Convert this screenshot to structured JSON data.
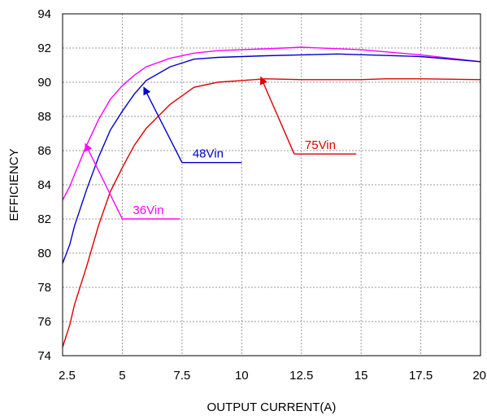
{
  "chart_data": {
    "type": "line",
    "xlabel": "OUTPUT CURRENT(A)",
    "ylabel": "EFFICIENCY",
    "xlim": [
      2.5,
      20
    ],
    "ylim": [
      74,
      94
    ],
    "x_ticks": [
      "2.5",
      "5",
      "7.5",
      "10",
      "12.5",
      "15",
      "17.5",
      "20"
    ],
    "y_ticks": [
      "74",
      "76",
      "78",
      "80",
      "82",
      "84",
      "86",
      "88",
      "90",
      "92",
      "94"
    ],
    "grid": true,
    "series": [
      {
        "name": "36Vin",
        "color": "#ff00ff",
        "x": [
          2.5,
          2.8,
          3.0,
          3.5,
          4.0,
          4.5,
          5.0,
          5.5,
          6.0,
          7.0,
          8.0,
          9.0,
          10.0,
          11.0,
          12.5,
          15.0,
          17.5,
          20.0
        ],
        "y": [
          83.1,
          83.9,
          84.6,
          86.3,
          87.8,
          89.0,
          89.8,
          90.4,
          90.9,
          91.4,
          91.7,
          91.85,
          91.9,
          91.95,
          92.05,
          91.9,
          91.6,
          91.2
        ]
      },
      {
        "name": "48Vin",
        "color": "#0000cc",
        "x": [
          2.5,
          2.8,
          3.0,
          3.5,
          4.0,
          4.5,
          5.0,
          5.5,
          6.0,
          7.0,
          8.0,
          9.0,
          10.0,
          11.0,
          12.5,
          14.0,
          17.5,
          20.0
        ],
        "y": [
          79.4,
          80.5,
          81.6,
          83.7,
          85.6,
          87.2,
          88.3,
          89.3,
          90.1,
          90.9,
          91.35,
          91.45,
          91.5,
          91.55,
          91.6,
          91.65,
          91.5,
          91.2
        ]
      },
      {
        "name": "75Vin",
        "color": "#dd0000",
        "x": [
          2.5,
          2.8,
          3.0,
          3.5,
          4.0,
          4.5,
          5.0,
          5.5,
          6.0,
          7.0,
          8.0,
          9.0,
          10.0,
          11.0,
          12.5,
          15.0,
          16.0,
          17.5,
          20.0
        ],
        "y": [
          74.5,
          75.8,
          77.0,
          79.2,
          81.6,
          83.6,
          85.0,
          86.3,
          87.3,
          88.7,
          89.7,
          90.0,
          90.1,
          90.2,
          90.15,
          90.15,
          90.2,
          90.2,
          90.15
        ]
      }
    ],
    "annotations": [
      {
        "text": "36Vin",
        "color": "#ff00ff",
        "label_x": 5.0,
        "label_y": 82.0,
        "line_end_x": 7.4,
        "arrow_to_x": 3.45,
        "arrow_to_y": 86.4
      },
      {
        "text": "48Vin",
        "color": "#0000cc",
        "label_x": 7.5,
        "label_y": 85.3,
        "line_end_x": 10.0,
        "arrow_to_x": 5.9,
        "arrow_to_y": 89.7
      },
      {
        "text": "75Vin",
        "color": "#dd0000",
        "label_x": 12.2,
        "label_y": 85.8,
        "line_end_x": 14.8,
        "arrow_to_x": 10.8,
        "arrow_to_y": 90.3
      }
    ]
  }
}
